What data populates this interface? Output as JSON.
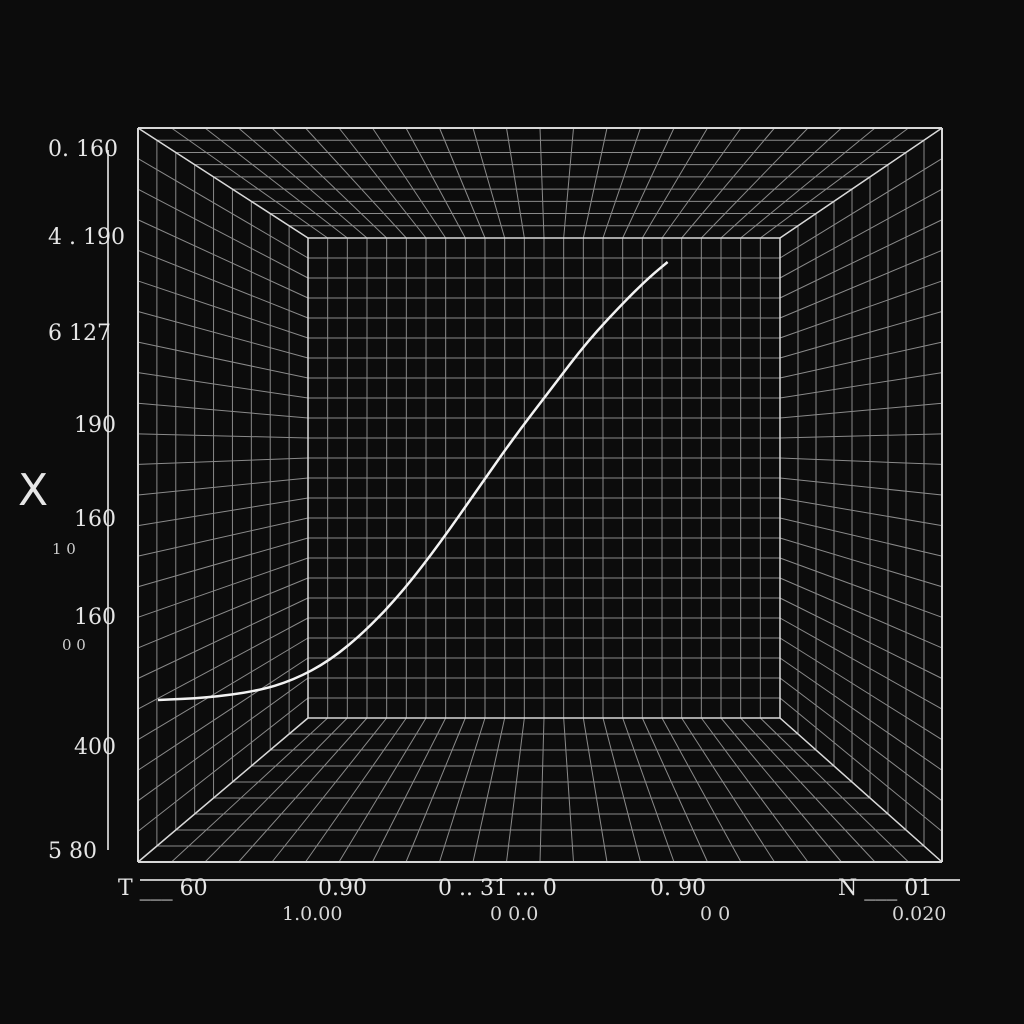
{
  "chart_data": {
    "type": "line",
    "title": "",
    "xlabel": "",
    "ylabel": "X",
    "grid": true,
    "legend": "none",
    "y_tick_labels": [
      "0. 160",
      "4 . 190",
      "6 127",
      "190",
      "160",
      "160",
      "400",
      "5 80"
    ],
    "y_sub_labels": [
      "1 0",
      "0 0"
    ],
    "x_tick_labels": [
      "T ___ 60",
      "0.90",
      "0 .. 31 ... 0",
      "0. 90",
      "N ___ 01"
    ],
    "x_sub_labels": [
      "1.0.00",
      "0 0.0",
      "0 0",
      "0.020"
    ],
    "series": [
      {
        "points": [
          [
            0.0,
            0.0
          ],
          [
            0.08,
            0.005
          ],
          [
            0.16,
            0.02
          ],
          [
            0.22,
            0.045
          ],
          [
            0.28,
            0.09
          ],
          [
            0.34,
            0.16
          ],
          [
            0.4,
            0.25
          ],
          [
            0.46,
            0.36
          ],
          [
            0.52,
            0.48
          ],
          [
            0.58,
            0.6
          ],
          [
            0.64,
            0.71
          ],
          [
            0.7,
            0.82
          ],
          [
            0.76,
            0.91
          ],
          [
            0.8,
            0.965
          ],
          [
            0.83,
            1.0
          ]
        ]
      }
    ],
    "xlim": [
      0,
      1
    ],
    "ylim": [
      0,
      1
    ]
  }
}
